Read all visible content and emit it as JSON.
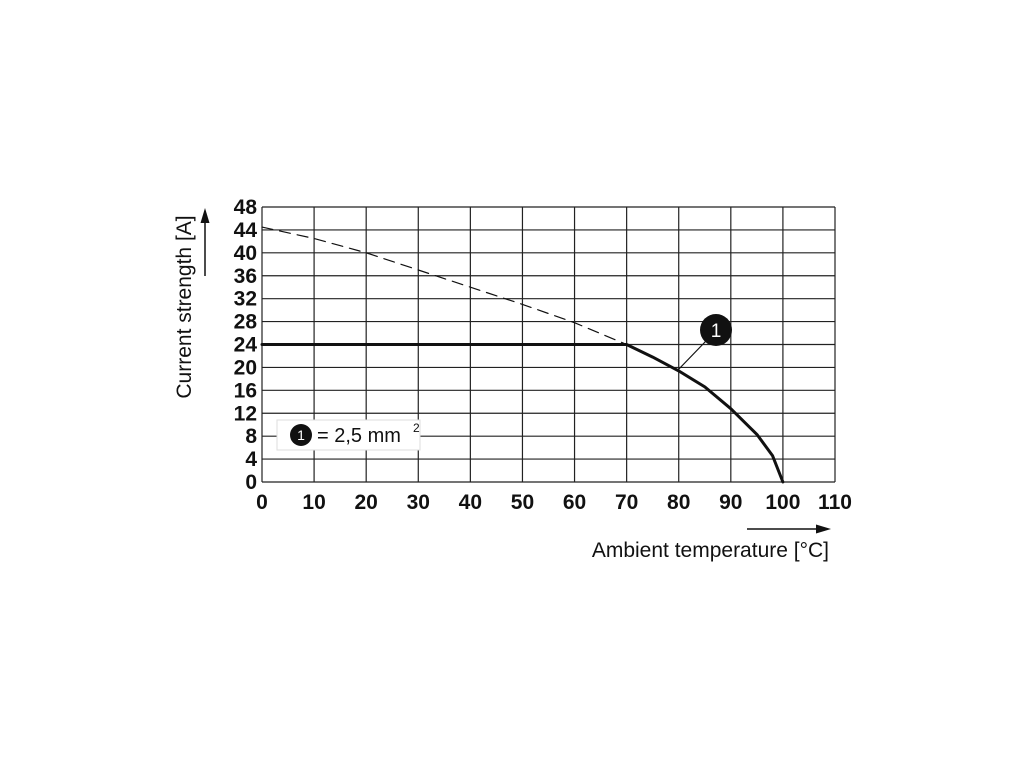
{
  "chart_data": {
    "type": "line",
    "xlabel": "Ambient temperature [°C]",
    "ylabel": "Current strength [A]",
    "xlim": [
      0,
      100
    ],
    "ylim": [
      0,
      48
    ],
    "x_ticks": [
      "0",
      "10",
      "20",
      "30",
      "40",
      "50",
      "60",
      "70",
      "80",
      "90",
      "100",
      "110"
    ],
    "y_ticks": [
      "0",
      "4",
      "8",
      "12",
      "16",
      "20",
      "24",
      "28",
      "32",
      "36",
      "40",
      "44",
      "48"
    ],
    "grid": true,
    "series": [
      {
        "name": "1",
        "style": "solid",
        "points": [
          [
            0,
            24
          ],
          [
            70,
            24
          ],
          [
            75,
            21.8
          ],
          [
            80,
            19.4
          ],
          [
            85,
            16.6
          ],
          [
            90,
            12.8
          ],
          [
            95,
            8.3
          ],
          [
            98,
            4.6
          ],
          [
            100,
            0
          ]
        ]
      },
      {
        "style": "dashed",
        "points": [
          [
            0,
            44.5
          ],
          [
            10,
            42.5
          ],
          [
            20,
            40
          ],
          [
            30,
            37
          ],
          [
            40,
            34
          ],
          [
            50,
            31
          ],
          [
            60,
            27.8
          ],
          [
            70,
            24
          ]
        ]
      }
    ],
    "annotation_marker": "1",
    "legend": {
      "marker": "1",
      "text": "= 2,5 mm",
      "superscript": "2",
      "placement": "bottom-left"
    },
    "colors": {
      "line": "#111111",
      "grid": "#222222",
      "background": "#ffffff"
    }
  }
}
